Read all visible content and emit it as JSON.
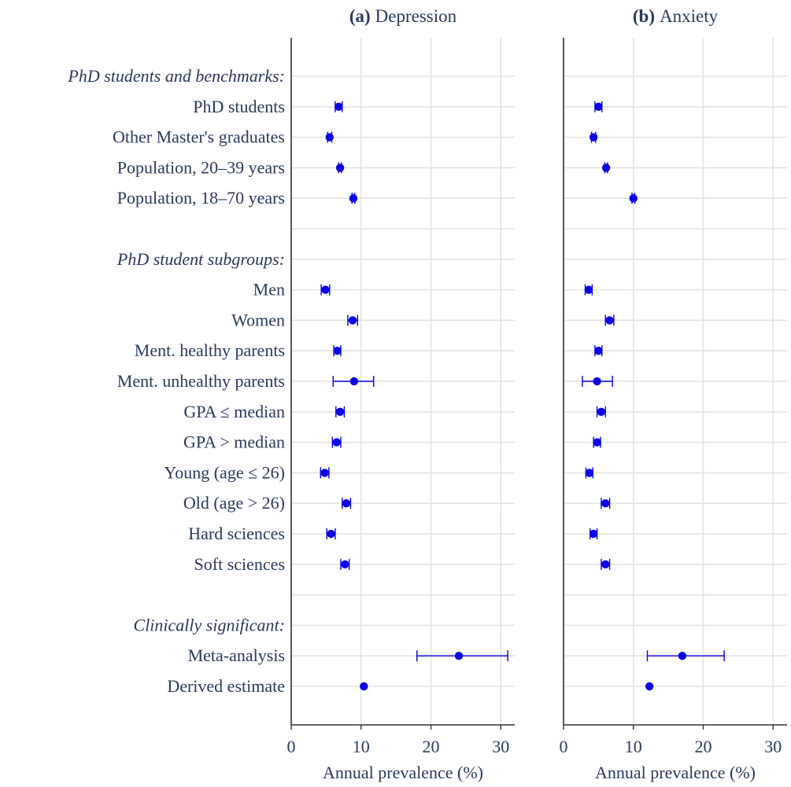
{
  "chart_data": [
    {
      "type": "scatter",
      "panel_tag": "(a)",
      "title": "Depression",
      "xlabel": "Annual prevalence (%)",
      "xlim": [
        0,
        32
      ],
      "xticks": [
        0,
        10,
        20,
        30
      ],
      "grid": true,
      "points": [
        {
          "row": "PhD students",
          "y": 6.8,
          "lo": 6.3,
          "hi": 7.3
        },
        {
          "row": "Other Master's graduates",
          "y": 5.5,
          "lo": 5.2,
          "hi": 5.8
        },
        {
          "row": "Population, 20–39 years",
          "y": 7.0,
          "lo": 6.8,
          "hi": 7.2
        },
        {
          "row": "Population, 18–70 years",
          "y": 8.9,
          "lo": 8.7,
          "hi": 9.1
        },
        {
          "row": "Men",
          "y": 4.9,
          "lo": 4.3,
          "hi": 5.5
        },
        {
          "row": "Women",
          "y": 8.8,
          "lo": 8.1,
          "hi": 9.5
        },
        {
          "row": "Ment. healthy parents",
          "y": 6.6,
          "lo": 6.1,
          "hi": 7.1
        },
        {
          "row": "Ment. unhealthy parents",
          "y": 9.0,
          "lo": 6.0,
          "hi": 11.8
        },
        {
          "row": "GPA ≤ median",
          "y": 7.0,
          "lo": 6.4,
          "hi": 7.6
        },
        {
          "row": "GPA > median",
          "y": 6.5,
          "lo": 5.9,
          "hi": 7.1
        },
        {
          "row": "Young (age ≤ 26)",
          "y": 4.8,
          "lo": 4.2,
          "hi": 5.4
        },
        {
          "row": "Old (age > 26)",
          "y": 7.9,
          "lo": 7.3,
          "hi": 8.5
        },
        {
          "row": "Hard sciences",
          "y": 5.7,
          "lo": 5.1,
          "hi": 6.3
        },
        {
          "row": "Soft sciences",
          "y": 7.7,
          "lo": 7.1,
          "hi": 8.3
        },
        {
          "row": "Meta-analysis",
          "y": 24.0,
          "lo": 18.0,
          "hi": 31.0
        },
        {
          "row": "Derived estimate",
          "y": 10.4,
          "lo": 10.4,
          "hi": 10.4
        }
      ]
    },
    {
      "type": "scatter",
      "panel_tag": "(b)",
      "title": "Anxiety",
      "xlabel": "Annual prevalence (%)",
      "xlim": [
        0,
        32
      ],
      "xticks": [
        0,
        10,
        20,
        30
      ],
      "grid": true,
      "points": [
        {
          "row": "PhD students",
          "y": 5.0,
          "lo": 4.5,
          "hi": 5.5
        },
        {
          "row": "Other Master's graduates",
          "y": 4.3,
          "lo": 4.0,
          "hi": 4.6
        },
        {
          "row": "Population, 20–39 years",
          "y": 6.1,
          "lo": 5.9,
          "hi": 6.3
        },
        {
          "row": "Population, 18–70 years",
          "y": 10.0,
          "lo": 9.8,
          "hi": 10.2
        },
        {
          "row": "Men",
          "y": 3.6,
          "lo": 3.1,
          "hi": 4.1
        },
        {
          "row": "Women",
          "y": 6.6,
          "lo": 6.0,
          "hi": 7.2
        },
        {
          "row": "Ment. healthy parents",
          "y": 5.0,
          "lo": 4.5,
          "hi": 5.5
        },
        {
          "row": "Ment. unhealthy parents",
          "y": 4.8,
          "lo": 2.7,
          "hi": 7.0
        },
        {
          "row": "GPA ≤ median",
          "y": 5.4,
          "lo": 4.8,
          "hi": 6.0
        },
        {
          "row": "GPA > median",
          "y": 4.8,
          "lo": 4.3,
          "hi": 5.3
        },
        {
          "row": "Young (age ≤ 26)",
          "y": 3.7,
          "lo": 3.2,
          "hi": 4.2
        },
        {
          "row": "Old (age > 26)",
          "y": 6.0,
          "lo": 5.4,
          "hi": 6.6
        },
        {
          "row": "Hard sciences",
          "y": 4.3,
          "lo": 3.8,
          "hi": 4.8
        },
        {
          "row": "Soft sciences",
          "y": 6.0,
          "lo": 5.4,
          "hi": 6.6
        },
        {
          "row": "Meta-analysis",
          "y": 17.0,
          "lo": 12.0,
          "hi": 23.0
        },
        {
          "row": "Derived estimate",
          "y": 12.3,
          "lo": 12.3,
          "hi": 12.3
        }
      ]
    }
  ],
  "rows": [
    {
      "label": "PhD students and benchmarks:",
      "header": true
    },
    {
      "label": "PhD students"
    },
    {
      "label": "Other Master's graduates"
    },
    {
      "label": "Population, 20–39 years"
    },
    {
      "label": "Population, 18–70 years"
    },
    {
      "label": "",
      "spacer": true
    },
    {
      "label": "PhD student subgroups:",
      "header": true
    },
    {
      "label": "Men"
    },
    {
      "label": "Women"
    },
    {
      "label": "Ment. healthy parents"
    },
    {
      "label": "Ment. unhealthy parents"
    },
    {
      "label": "GPA ≤ median"
    },
    {
      "label": "GPA > median"
    },
    {
      "label": "Young (age ≤ 26)"
    },
    {
      "label": "Old (age > 26)"
    },
    {
      "label": "Hard sciences"
    },
    {
      "label": "Soft sciences"
    },
    {
      "label": "",
      "spacer": true
    },
    {
      "label": "Clinically significant:",
      "header": true
    },
    {
      "label": "Meta-analysis"
    },
    {
      "label": "Derived estimate"
    }
  ],
  "colors": {
    "marker": "#0a00e6",
    "text": "#2a3b5c",
    "grid": "#e3e3e3",
    "axis": "#333333"
  }
}
